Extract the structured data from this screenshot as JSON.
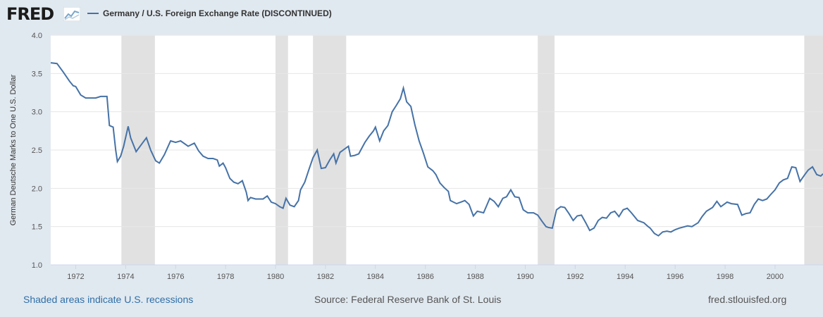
{
  "header": {
    "logo_text": "FRED",
    "logo_icon": "line-chart-icon",
    "legend_label": "Germany / U.S. Foreign Exchange Rate (DISCONTINUED)"
  },
  "footer": {
    "recessions_note": "Shaded areas indicate U.S. recessions",
    "source": "Source: Federal Reserve Bank of St. Louis",
    "site": "fred.stlouisfed.org"
  },
  "colors": {
    "line": "#4572a7",
    "recession": "#e1e1e1",
    "background": "#e1e9f0",
    "plot": "#ffffff"
  },
  "chart_data": {
    "type": "line",
    "title": "",
    "ylabel": "German Deutsche Marks to One U.S. Dollar",
    "xlabel": "",
    "xlim": [
      1971.0,
      2001.92
    ],
    "ylim": [
      1.0,
      4.0
    ],
    "yticks": [
      "1.0",
      "1.5",
      "2.0",
      "2.5",
      "3.0",
      "3.5",
      "4.0"
    ],
    "xticks": [
      "1972",
      "1974",
      "1976",
      "1978",
      "1980",
      "1982",
      "1984",
      "1986",
      "1988",
      "1990",
      "1992",
      "1994",
      "1996",
      "1998",
      "2000"
    ],
    "recessions": [
      [
        1973.83,
        1975.17
      ],
      [
        1980.0,
        1980.5
      ],
      [
        1981.5,
        1982.83
      ],
      [
        1990.5,
        1991.17
      ],
      [
        2001.17,
        2001.92
      ]
    ],
    "series": [
      {
        "points": [
          [
            1971.0,
            3.64
          ],
          [
            1971.25,
            3.63
          ],
          [
            1971.5,
            3.52
          ],
          [
            1971.75,
            3.4
          ],
          [
            1971.9,
            3.34
          ],
          [
            1972.0,
            3.33
          ],
          [
            1972.2,
            3.22
          ],
          [
            1972.4,
            3.18
          ],
          [
            1972.6,
            3.18
          ],
          [
            1972.8,
            3.18
          ],
          [
            1973.0,
            3.2
          ],
          [
            1973.25,
            3.2
          ],
          [
            1973.35,
            2.82
          ],
          [
            1973.5,
            2.8
          ],
          [
            1973.6,
            2.5
          ],
          [
            1973.67,
            2.35
          ],
          [
            1973.8,
            2.42
          ],
          [
            1973.92,
            2.55
          ],
          [
            1974.1,
            2.81
          ],
          [
            1974.2,
            2.66
          ],
          [
            1974.42,
            2.48
          ],
          [
            1974.67,
            2.59
          ],
          [
            1974.83,
            2.66
          ],
          [
            1975.0,
            2.5
          ],
          [
            1975.2,
            2.36
          ],
          [
            1975.35,
            2.33
          ],
          [
            1975.55,
            2.44
          ],
          [
            1975.8,
            2.62
          ],
          [
            1976.0,
            2.6
          ],
          [
            1976.2,
            2.62
          ],
          [
            1976.5,
            2.55
          ],
          [
            1976.75,
            2.59
          ],
          [
            1976.92,
            2.49
          ],
          [
            1977.1,
            2.42
          ],
          [
            1977.3,
            2.39
          ],
          [
            1977.5,
            2.39
          ],
          [
            1977.67,
            2.37
          ],
          [
            1977.75,
            2.29
          ],
          [
            1977.9,
            2.33
          ],
          [
            1978.0,
            2.27
          ],
          [
            1978.17,
            2.13
          ],
          [
            1978.33,
            2.08
          ],
          [
            1978.5,
            2.06
          ],
          [
            1978.67,
            2.1
          ],
          [
            1978.83,
            1.95
          ],
          [
            1978.9,
            1.84
          ],
          [
            1979.0,
            1.88
          ],
          [
            1979.2,
            1.86
          ],
          [
            1979.5,
            1.86
          ],
          [
            1979.67,
            1.9
          ],
          [
            1979.83,
            1.82
          ],
          [
            1980.0,
            1.8
          ],
          [
            1980.17,
            1.76
          ],
          [
            1980.3,
            1.74
          ],
          [
            1980.42,
            1.87
          ],
          [
            1980.58,
            1.78
          ],
          [
            1980.75,
            1.76
          ],
          [
            1980.92,
            1.84
          ],
          [
            1981.0,
            1.98
          ],
          [
            1981.17,
            2.08
          ],
          [
            1981.33,
            2.24
          ],
          [
            1981.5,
            2.4
          ],
          [
            1981.67,
            2.5
          ],
          [
            1981.83,
            2.26
          ],
          [
            1982.0,
            2.27
          ],
          [
            1982.17,
            2.37
          ],
          [
            1982.33,
            2.45
          ],
          [
            1982.42,
            2.33
          ],
          [
            1982.58,
            2.47
          ],
          [
            1982.75,
            2.51
          ],
          [
            1982.92,
            2.55
          ],
          [
            1983.0,
            2.42
          ],
          [
            1983.17,
            2.43
          ],
          [
            1983.33,
            2.45
          ],
          [
            1983.58,
            2.6
          ],
          [
            1983.75,
            2.68
          ],
          [
            1983.92,
            2.75
          ],
          [
            1984.0,
            2.8
          ],
          [
            1984.17,
            2.62
          ],
          [
            1984.33,
            2.75
          ],
          [
            1984.5,
            2.82
          ],
          [
            1984.67,
            3.0
          ],
          [
            1984.83,
            3.08
          ],
          [
            1985.0,
            3.17
          ],
          [
            1985.12,
            3.31
          ],
          [
            1985.25,
            3.13
          ],
          [
            1985.42,
            3.07
          ],
          [
            1985.58,
            2.83
          ],
          [
            1985.75,
            2.62
          ],
          [
            1985.92,
            2.46
          ],
          [
            1986.1,
            2.28
          ],
          [
            1986.3,
            2.23
          ],
          [
            1986.42,
            2.18
          ],
          [
            1986.58,
            2.07
          ],
          [
            1986.75,
            2.01
          ],
          [
            1986.92,
            1.96
          ],
          [
            1987.0,
            1.84
          ],
          [
            1987.25,
            1.8
          ],
          [
            1987.42,
            1.82
          ],
          [
            1987.58,
            1.84
          ],
          [
            1987.75,
            1.79
          ],
          [
            1987.92,
            1.64
          ],
          [
            1988.08,
            1.7
          ],
          [
            1988.33,
            1.68
          ],
          [
            1988.58,
            1.87
          ],
          [
            1988.75,
            1.83
          ],
          [
            1988.92,
            1.76
          ],
          [
            1989.1,
            1.87
          ],
          [
            1989.25,
            1.89
          ],
          [
            1989.42,
            1.98
          ],
          [
            1989.58,
            1.89
          ],
          [
            1989.75,
            1.88
          ],
          [
            1989.92,
            1.72
          ],
          [
            1990.1,
            1.68
          ],
          [
            1990.33,
            1.68
          ],
          [
            1990.5,
            1.65
          ],
          [
            1990.67,
            1.57
          ],
          [
            1990.83,
            1.5
          ],
          [
            1990.92,
            1.49
          ],
          [
            1991.08,
            1.48
          ],
          [
            1991.25,
            1.72
          ],
          [
            1991.42,
            1.76
          ],
          [
            1991.58,
            1.75
          ],
          [
            1991.75,
            1.67
          ],
          [
            1991.92,
            1.58
          ],
          [
            1992.08,
            1.64
          ],
          [
            1992.25,
            1.65
          ],
          [
            1992.42,
            1.55
          ],
          [
            1992.58,
            1.45
          ],
          [
            1992.75,
            1.48
          ],
          [
            1992.92,
            1.58
          ],
          [
            1993.08,
            1.62
          ],
          [
            1993.25,
            1.61
          ],
          [
            1993.42,
            1.68
          ],
          [
            1993.58,
            1.7
          ],
          [
            1993.75,
            1.63
          ],
          [
            1993.92,
            1.72
          ],
          [
            1994.08,
            1.74
          ],
          [
            1994.25,
            1.68
          ],
          [
            1994.5,
            1.58
          ],
          [
            1994.75,
            1.55
          ],
          [
            1994.92,
            1.5
          ],
          [
            1995.0,
            1.48
          ],
          [
            1995.17,
            1.41
          ],
          [
            1995.33,
            1.38
          ],
          [
            1995.5,
            1.43
          ],
          [
            1995.67,
            1.44
          ],
          [
            1995.83,
            1.43
          ],
          [
            1996.0,
            1.46
          ],
          [
            1996.17,
            1.48
          ],
          [
            1996.5,
            1.51
          ],
          [
            1996.67,
            1.5
          ],
          [
            1996.92,
            1.55
          ],
          [
            1997.08,
            1.63
          ],
          [
            1997.25,
            1.7
          ],
          [
            1997.5,
            1.75
          ],
          [
            1997.67,
            1.83
          ],
          [
            1997.83,
            1.76
          ],
          [
            1998.08,
            1.82
          ],
          [
            1998.25,
            1.8
          ],
          [
            1998.5,
            1.79
          ],
          [
            1998.67,
            1.65
          ],
          [
            1998.83,
            1.67
          ],
          [
            1999.0,
            1.68
          ],
          [
            1999.17,
            1.79
          ],
          [
            1999.33,
            1.86
          ],
          [
            1999.5,
            1.84
          ],
          [
            1999.67,
            1.86
          ],
          [
            1999.83,
            1.92
          ],
          [
            2000.0,
            1.98
          ],
          [
            2000.17,
            2.07
          ],
          [
            2000.33,
            2.11
          ],
          [
            2000.5,
            2.13
          ],
          [
            2000.67,
            2.28
          ],
          [
            2000.83,
            2.27
          ],
          [
            2001.0,
            2.09
          ],
          [
            2001.17,
            2.17
          ],
          [
            2001.33,
            2.24
          ],
          [
            2001.5,
            2.28
          ],
          [
            2001.67,
            2.18
          ],
          [
            2001.83,
            2.16
          ],
          [
            2001.92,
            2.19
          ]
        ]
      }
    ]
  }
}
